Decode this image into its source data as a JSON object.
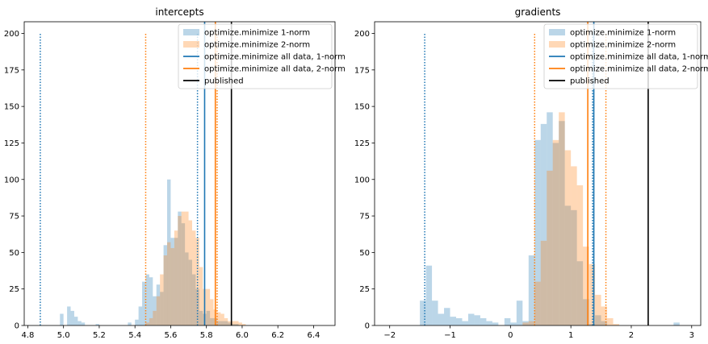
{
  "chart_data": [
    {
      "type": "histogram",
      "title": "intercepts",
      "xlim": [
        4.78,
        6.52
      ],
      "ylim": [
        0,
        208
      ],
      "xticks": [
        "4.8",
        "5.0",
        "5.2",
        "5.4",
        "5.6",
        "5.8",
        "6.0",
        "6.2",
        "6.4"
      ],
      "yticks": [
        "0",
        "25",
        "50",
        "75",
        "100",
        "125",
        "150",
        "175",
        "200"
      ],
      "bin_start": 4.98,
      "bin_width": 0.02,
      "series": [
        {
          "name": "optimize.minimize 1-norm",
          "color": "#1f77b4",
          "opacity": 0.3,
          "counts": [
            8,
            0,
            13,
            10,
            6,
            3,
            2,
            0,
            0,
            0,
            1,
            0,
            0,
            0,
            0,
            0,
            0,
            0,
            0,
            2,
            0,
            4,
            13,
            30,
            35,
            33,
            20,
            28,
            23,
            55,
            100,
            60,
            60,
            78,
            70,
            50,
            45,
            35,
            25,
            10,
            8,
            10,
            5,
            5,
            3,
            3,
            3,
            2,
            1,
            1,
            0,
            0,
            0,
            0,
            0,
            0,
            0,
            0,
            0,
            0,
            0,
            0,
            0,
            0,
            0
          ]
        },
        {
          "name": "optimize.minimize 2-norm",
          "color": "#ff7f0e",
          "opacity": 0.3,
          "counts": [
            0,
            0,
            0,
            0,
            0,
            0,
            0,
            0,
            0,
            0,
            0,
            0,
            0,
            0,
            0,
            0,
            0,
            0,
            0,
            0,
            0,
            0,
            0,
            0,
            2,
            5,
            10,
            20,
            35,
            48,
            57,
            53,
            65,
            75,
            78,
            78,
            72,
            65,
            60,
            40,
            25,
            25,
            18,
            11,
            9,
            8,
            5,
            3,
            3,
            3,
            2,
            1,
            0,
            0,
            0,
            0,
            0,
            0,
            0,
            0,
            0,
            0,
            0,
            0,
            0
          ]
        }
      ],
      "vlines": [
        {
          "x": 4.87,
          "color": "#1f77b4",
          "style": "dotted",
          "top": 200
        },
        {
          "x": 5.46,
          "color": "#ff7f0e",
          "style": "dotted",
          "top": 200
        },
        {
          "x": 5.75,
          "color": "#1f77b4",
          "style": "dotted",
          "top": 200
        },
        {
          "x": 5.86,
          "color": "#ff7f0e",
          "style": "dotted",
          "top": 200
        },
        {
          "x": 5.79,
          "color": "#1f77b4",
          "style": "solid",
          "top": 208
        },
        {
          "x": 5.85,
          "color": "#ff7f0e",
          "style": "solid",
          "top": 208
        },
        {
          "x": 5.94,
          "color": "#000000",
          "style": "solid",
          "top": 208
        }
      ]
    },
    {
      "type": "histogram",
      "title": "gradients",
      "xlim": [
        -2.25,
        3.15
      ],
      "ylim": [
        0,
        208
      ],
      "xticks": [
        "−2",
        "−1",
        "0",
        "1",
        "2",
        "3"
      ],
      "xtick_values": [
        -2,
        -1,
        0,
        1,
        2,
        3
      ],
      "yticks": [
        "0",
        "25",
        "50",
        "75",
        "100",
        "125",
        "150",
        "175",
        "200"
      ],
      "bin_start": -1.5,
      "bin_width": 0.1,
      "series": [
        {
          "name": "optimize.minimize 1-norm",
          "color": "#1f77b4",
          "opacity": 0.3,
          "counts": [
            17,
            41,
            17,
            8,
            12,
            6,
            5,
            3,
            8,
            7,
            5,
            3,
            2,
            0,
            5,
            2,
            17,
            3,
            48,
            127,
            138,
            146,
            125,
            140,
            82,
            79,
            44,
            18,
            1,
            7,
            3,
            0,
            0,
            0,
            0,
            0,
            0,
            0,
            0,
            0,
            0,
            0,
            2
          ]
        },
        {
          "name": "optimize.minimize 2-norm",
          "color": "#ff7f0e",
          "opacity": 0.3,
          "counts": [
            0,
            0,
            0,
            0,
            0,
            0,
            0,
            0,
            0,
            0,
            0,
            0,
            0,
            0,
            0,
            0,
            0,
            2,
            3,
            30,
            58,
            106,
            127,
            146,
            120,
            109,
            96,
            54,
            42,
            21,
            13,
            5,
            1,
            0,
            0,
            0,
            0,
            0,
            0,
            0,
            0,
            0,
            0
          ]
        }
      ],
      "vlines": [
        {
          "x": -1.42,
          "color": "#1f77b4",
          "style": "dotted",
          "top": 200
        },
        {
          "x": 0.4,
          "color": "#ff7f0e",
          "style": "dotted",
          "top": 200
        },
        {
          "x": 1.36,
          "color": "#1f77b4",
          "style": "dotted",
          "top": 200
        },
        {
          "x": 1.58,
          "color": "#ff7f0e",
          "style": "dotted",
          "top": 200
        },
        {
          "x": 1.38,
          "color": "#1f77b4",
          "style": "solid",
          "top": 208
        },
        {
          "x": 1.28,
          "color": "#ff7f0e",
          "style": "solid",
          "top": 208
        },
        {
          "x": 2.28,
          "color": "#000000",
          "style": "solid",
          "top": 208
        }
      ]
    }
  ],
  "legend": [
    {
      "label": "optimize.minimize 1-norm",
      "kind": "patch",
      "color": "#1f77b4"
    },
    {
      "label": "optimize.minimize 2-norm",
      "kind": "patch",
      "color": "#ff7f0e"
    },
    {
      "label": "optimize.minimize all data, 1-norm",
      "kind": "line",
      "color": "#1f77b4"
    },
    {
      "label": "optimize.minimize all data, 2-norm",
      "kind": "line",
      "color": "#ff7f0e"
    },
    {
      "label": "published",
      "kind": "line",
      "color": "#000000"
    }
  ]
}
